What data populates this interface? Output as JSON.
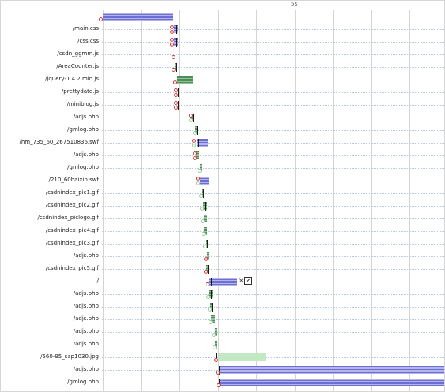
{
  "timeline": {
    "ruler_label": "5s",
    "grid_color": "#d4d4d4",
    "bar_colors": {
      "blocking": "#6d6ed2",
      "receiving": "#4f8d58",
      "waiting": "#c3e8c4"
    }
  },
  "requests": [
    {
      "name": "",
      "bar": "blue",
      "markers": [
        "red"
      ]
    },
    {
      "name": "/main.css",
      "bar": "blue",
      "markers": [
        "red",
        "red"
      ]
    },
    {
      "name": "/css.css",
      "bar": "blue",
      "markers": [
        "red",
        "red"
      ]
    },
    {
      "name": "/csdn_ggmm.js",
      "bar": "none",
      "markers": [
        "red"
      ]
    },
    {
      "name": "/AreaCounter.js",
      "bar": "green",
      "markers": [
        "red"
      ]
    },
    {
      "name": "/jquery-1.4.2.min.js",
      "bar": "green",
      "markers": [
        "red"
      ]
    },
    {
      "name": "/prettydate.js",
      "bar": "none",
      "markers": [
        "red",
        "red"
      ]
    },
    {
      "name": "/miniblog.js",
      "bar": "none",
      "markers": [
        "red",
        "red"
      ]
    },
    {
      "name": "/adjs.php",
      "bar": "green",
      "markers": [
        "red",
        "green"
      ]
    },
    {
      "name": "/gmlog.php",
      "bar": "green",
      "markers": [
        "green"
      ]
    },
    {
      "name": "/hm_735_60_267510836.swf",
      "bar": "blue",
      "markers": [
        "red",
        "green"
      ]
    },
    {
      "name": "/adjs.php",
      "bar": "green",
      "markers": [
        "red",
        "red"
      ]
    },
    {
      "name": "/gmlog.php",
      "bar": "green",
      "markers": [
        "green"
      ]
    },
    {
      "name": "/210_60haixin.swf",
      "bar": "blue",
      "markers": [
        "red",
        "green"
      ]
    },
    {
      "name": "/csdnindex_pic1.gif",
      "bar": "green",
      "markers": [
        "green"
      ]
    },
    {
      "name": "/csdnindex_pic2.gif",
      "bar": "green",
      "markers": [
        "green"
      ]
    },
    {
      "name": "/csdnindex_piclogo.gif",
      "bar": "green",
      "markers": [
        "green"
      ]
    },
    {
      "name": "/csdnindex_pic4.gif",
      "bar": "green",
      "markers": [
        "green"
      ]
    },
    {
      "name": "/csdnindex_pic3.gif",
      "bar": "green",
      "markers": [
        "green"
      ]
    },
    {
      "name": "/adjs.php",
      "bar": "green",
      "markers": [
        "red"
      ]
    },
    {
      "name": "/csdnindex_pic5.gif",
      "bar": "green",
      "markers": [
        "red"
      ]
    },
    {
      "name": "/",
      "bar": "blue",
      "markers": [
        "red"
      ]
    },
    {
      "name": "/adjs.php",
      "bar": "green",
      "markers": [
        "green"
      ]
    },
    {
      "name": "/adjs.php",
      "bar": "green",
      "markers": [
        "green"
      ]
    },
    {
      "name": "/adjs.php",
      "bar": "green",
      "markers": [
        "green"
      ]
    },
    {
      "name": "/adjs.php",
      "bar": "green",
      "markers": [
        "green"
      ]
    },
    {
      "name": "/adjs.php",
      "bar": "green",
      "markers": [
        "green"
      ]
    },
    {
      "name": "/560-95_sap1030.jpg",
      "bar": "light-green",
      "markers": [
        "red"
      ]
    },
    {
      "name": "/adjs.php",
      "bar": "blue",
      "markers": [
        "red"
      ]
    },
    {
      "name": "/gmlog.php",
      "bar": "blue",
      "markers": [
        "red"
      ]
    }
  ],
  "row_controls": {
    "close_symbol": "×"
  }
}
